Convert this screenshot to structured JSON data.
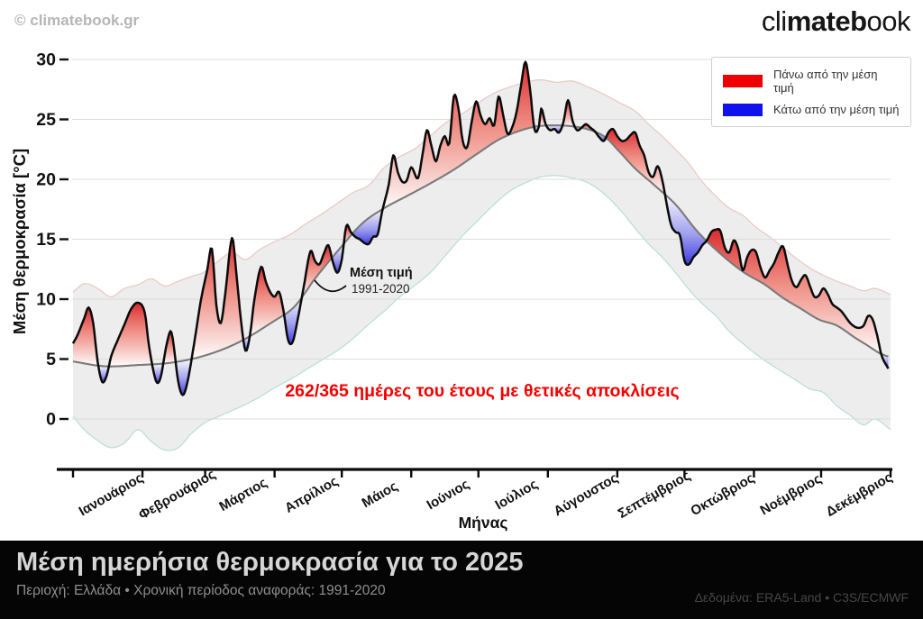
{
  "watermark": "© climatebook.gr",
  "logo": {
    "light_prefix": "cli",
    "bold": "mateb",
    "light_suffix": "ook"
  },
  "legend": {
    "above_label": "Πάνω από την μέση τιμή",
    "below_label": "Κάτω από την μέση τιμή"
  },
  "annotation": {
    "line1": "Μέση τιμή",
    "line2": "1991-2020"
  },
  "stat_text": "262/365 ημέρες του έτους με θετικές αποκλίσεις",
  "footer": {
    "title": "Μέση ημερήσια θερμοκρασία για το 2025",
    "subtitle": "Περιοχή: Ελλάδα • Χρονική περίοδος αναφοράς: 1991-2020",
    "source": "Δεδομένα: ERA5-Land • C3S/ECMWF"
  },
  "chart_data": {
    "type": "line",
    "xlabel": "Μήνας",
    "ylabel": "Μέση θερμοκρασία [°C]",
    "yticks": [
      0,
      5,
      10,
      15,
      20,
      25,
      30
    ],
    "ylim": [
      -4,
      30.5
    ],
    "categories": [
      "Ιανουάριος",
      "Φεβρουάριος",
      "Μάρτιος",
      "Απρίλιος",
      "Μάιος",
      "Ιούνιος",
      "Ιούλιος",
      "Αύγουστος",
      "Σεπτέμβριος",
      "Οκτώβριος",
      "Νοέμβριος",
      "Δεκέμβριος"
    ],
    "month_start_days": [
      1,
      32,
      60,
      91,
      121,
      152,
      182,
      213,
      244,
      274,
      305,
      335,
      366
    ],
    "colors": {
      "above": "#ee0000",
      "below": "#1111ee",
      "fill_red_deep": "#d81f22",
      "fill_red_mid": "#f0796d",
      "fill_blue_deep": "#2e2ee0",
      "fill_blue_mid": "#8f8ff0",
      "line_2025": "#0b0b0b",
      "line_mean": "#7a7a7a",
      "band": "#ededed",
      "band_top_edge": "#e0a396",
      "band_bottom_edge": "#8fcec3",
      "grid": "#dcdcdc",
      "stat_red": "#f40000"
    },
    "series_2025": {
      "name": "2025",
      "days": [
        1,
        3,
        6,
        8,
        10,
        12,
        14,
        16,
        18,
        21,
        24,
        27,
        30,
        33,
        35,
        38,
        40,
        43,
        45,
        48,
        50,
        52,
        55,
        58,
        61,
        63,
        65,
        67,
        69,
        72,
        74,
        76,
        78,
        80,
        82,
        85,
        87,
        89,
        91,
        93,
        95,
        97,
        99,
        101,
        104,
        107,
        109,
        111,
        113,
        115,
        117,
        119,
        121,
        123,
        125,
        127,
        129,
        131,
        133,
        135,
        137,
        139,
        142,
        144,
        146,
        148,
        150,
        152,
        155,
        157,
        159,
        161,
        163,
        165,
        167,
        169,
        171,
        173,
        175,
        177,
        179,
        181,
        183,
        185,
        187,
        189,
        191,
        193,
        195,
        197,
        199,
        201,
        203,
        205,
        207,
        209,
        210,
        212,
        214,
        216,
        218,
        220,
        222,
        224,
        226,
        228,
        230,
        232,
        234,
        236,
        238,
        240,
        242,
        244,
        246,
        248,
        250,
        252,
        254,
        256,
        258,
        260,
        262,
        264,
        266,
        268,
        270,
        272,
        274,
        276,
        278,
        280,
        282,
        284,
        286,
        288,
        290,
        292,
        294,
        296,
        298,
        300,
        302,
        304,
        306,
        308,
        310,
        312,
        314,
        316,
        318,
        320,
        322,
        324,
        326,
        328,
        330,
        332,
        334,
        336,
        338,
        340,
        342,
        344,
        346,
        348,
        350,
        352,
        354,
        356,
        358,
        360,
        362,
        365
      ],
      "values": [
        6.3,
        7.0,
        8.4,
        9.3,
        8.0,
        4.8,
        3.1,
        3.6,
        5.2,
        6.6,
        7.9,
        9.2,
        9.7,
        8.9,
        6.0,
        3.2,
        3.4,
        6.4,
        7.2,
        3.1,
        2.0,
        3.0,
        6.2,
        9.8,
        12.5,
        14.2,
        9.5,
        8.0,
        10.5,
        15.1,
        12.0,
        8.2,
        5.7,
        7.0,
        10.0,
        12.7,
        11.5,
        10.6,
        10.2,
        10.6,
        9.0,
        6.6,
        6.4,
        8.0,
        11.0,
        14.0,
        13.2,
        12.9,
        13.8,
        14.5,
        13.1,
        12.2,
        13.3,
        16.1,
        15.6,
        15.2,
        15.0,
        14.7,
        14.6,
        15.2,
        15.4,
        17.3,
        19.6,
        22.0,
        20.6,
        19.8,
        19.9,
        21.0,
        20.1,
        22.0,
        24.1,
        22.8,
        21.5,
        22.8,
        23.6,
        23.0,
        26.9,
        26.0,
        23.2,
        22.7,
        24.8,
        26.5,
        25.3,
        24.6,
        25.1,
        24.5,
        26.9,
        25.4,
        23.8,
        24.3,
        25.6,
        27.8,
        29.8,
        27.6,
        24.2,
        24.4,
        25.9,
        24.6,
        24.1,
        24.2,
        23.9,
        24.8,
        26.6,
        24.9,
        24.1,
        24.3,
        24.6,
        24.3,
        24.0,
        23.5,
        23.2,
        23.9,
        24.2,
        23.6,
        23.2,
        23.3,
        23.7,
        23.9,
        22.8,
        22.0,
        20.6,
        20.2,
        21.1,
        20.0,
        18.0,
        16.2,
        15.6,
        15.3,
        13.2,
        12.9,
        13.5,
        13.9,
        14.5,
        14.9,
        15.6,
        15.8,
        15.7,
        14.3,
        13.9,
        14.9,
        14.2,
        12.4,
        13.5,
        14.1,
        13.9,
        12.6,
        11.8,
        12.4,
        13.0,
        13.9,
        14.4,
        12.9,
        11.5,
        11.0,
        11.6,
        12.0,
        11.1,
        10.2,
        10.3,
        10.9,
        10.4,
        9.6,
        9.3,
        9.0,
        8.5,
        8.0,
        7.7,
        7.6,
        7.8,
        8.6,
        8.3,
        7.0,
        5.3,
        4.2
      ]
    },
    "series_mean": {
      "name": "Μέση τιμή 1991-2020",
      "days": [
        1,
        15,
        30,
        45,
        60,
        75,
        91,
        100,
        109,
        120,
        130,
        140,
        150,
        160,
        171,
        182,
        192,
        205,
        215,
        228,
        238,
        245,
        252,
        260,
        270,
        280,
        290,
        300,
        310,
        318,
        326,
        334,
        342,
        350,
        356,
        361,
        365
      ],
      "values": [
        4.8,
        4.4,
        4.5,
        4.7,
        5.3,
        6.4,
        8.2,
        9.4,
        11.7,
        14.2,
        16.3,
        17.6,
        18.6,
        19.6,
        20.8,
        22.2,
        23.4,
        24.3,
        24.5,
        24.3,
        23.6,
        22.3,
        20.9,
        19.6,
        17.9,
        15.6,
        13.8,
        12.3,
        11.2,
        10.1,
        9.2,
        8.3,
        7.8,
        6.8,
        6.1,
        5.5,
        5.2
      ]
    },
    "env_high": {
      "name": "envelope_high",
      "days": [
        1,
        6,
        12,
        18,
        24,
        30,
        36,
        42,
        48,
        54,
        60,
        66,
        72,
        78,
        84,
        91,
        98,
        105,
        112,
        119,
        126,
        133,
        140,
        147,
        154,
        161,
        168,
        175,
        182,
        189,
        196,
        203,
        210,
        217,
        224,
        231,
        238,
        245,
        252,
        258,
        264,
        270,
        276,
        282,
        288,
        294,
        300,
        306,
        312,
        318,
        324,
        330,
        336,
        342,
        348,
        354,
        359,
        366
      ],
      "values": [
        10.6,
        11.3,
        10.9,
        10.2,
        10.9,
        11.2,
        11.7,
        11.1,
        11.5,
        11.9,
        12.3,
        13.2,
        13.9,
        13.3,
        14.1,
        14.8,
        15.4,
        16.3,
        17.1,
        18.0,
        18.9,
        19.5,
        21.0,
        21.9,
        22.6,
        23.7,
        24.8,
        25.5,
        26.4,
        27.2,
        27.7,
        28.1,
        28.3,
        28.1,
        28.2,
        27.7,
        27.1,
        26.4,
        25.7,
        24.6,
        23.6,
        22.5,
        21.3,
        19.8,
        18.6,
        17.6,
        17.0,
        16.0,
        15.2,
        14.3,
        13.4,
        12.6,
        12.0,
        11.5,
        11.1,
        10.7,
        10.9,
        10.4
      ]
    },
    "env_low": {
      "name": "envelope_low",
      "days": [
        1,
        6,
        12,
        18,
        24,
        30,
        36,
        42,
        48,
        54,
        60,
        66,
        72,
        78,
        84,
        91,
        98,
        105,
        112,
        119,
        126,
        133,
        140,
        147,
        154,
        161,
        168,
        175,
        182,
        189,
        196,
        203,
        210,
        217,
        224,
        231,
        238,
        245,
        252,
        258,
        264,
        270,
        276,
        282,
        288,
        294,
        300,
        306,
        312,
        318,
        324,
        330,
        336,
        342,
        348,
        354,
        359,
        366
      ],
      "values": [
        0.2,
        -0.9,
        -1.8,
        -2.4,
        -2.0,
        -0.9,
        -1.9,
        -2.6,
        -2.4,
        -1.2,
        -0.3,
        0.2,
        0.7,
        1.2,
        1.8,
        2.6,
        3.3,
        4.1,
        4.9,
        5.7,
        6.7,
        7.9,
        9.0,
        10.2,
        11.2,
        12.3,
        13.8,
        15.3,
        16.6,
        17.9,
        19.0,
        19.7,
        20.2,
        20.3,
        20.1,
        19.7,
        18.8,
        17.5,
        15.9,
        14.6,
        13.5,
        12.2,
        10.8,
        9.6,
        8.6,
        7.3,
        6.3,
        5.4,
        4.6,
        3.9,
        3.2,
        2.5,
        2.2,
        1.1,
        0.3,
        -0.5,
        0.0,
        -0.9
      ]
    }
  }
}
